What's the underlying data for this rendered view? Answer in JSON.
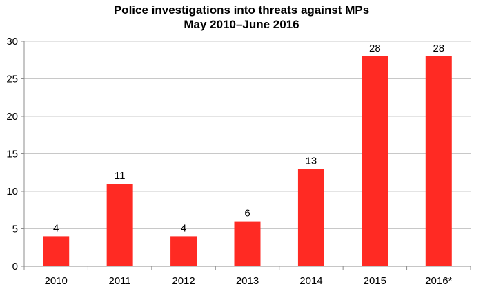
{
  "chart_data": {
    "type": "bar",
    "title": "Police investigations into threats against MPs",
    "subtitle": "May 2010–June 2016",
    "xlabel": "",
    "ylabel": "",
    "categories": [
      "2010",
      "2011",
      "2012",
      "2013",
      "2014",
      "2015",
      "2016*"
    ],
    "values": [
      4,
      11,
      4,
      6,
      13,
      28,
      28
    ],
    "data_labels": [
      "4",
      "11",
      "4",
      "6",
      "13",
      "28",
      "28"
    ],
    "ylim": [
      0,
      30
    ],
    "yticks": [
      "0",
      "5",
      "10",
      "15",
      "20",
      "25",
      "30"
    ],
    "grid": true,
    "legend": "none",
    "bar_color": "#ff2a23",
    "grid_color": "#c8c8c8"
  }
}
